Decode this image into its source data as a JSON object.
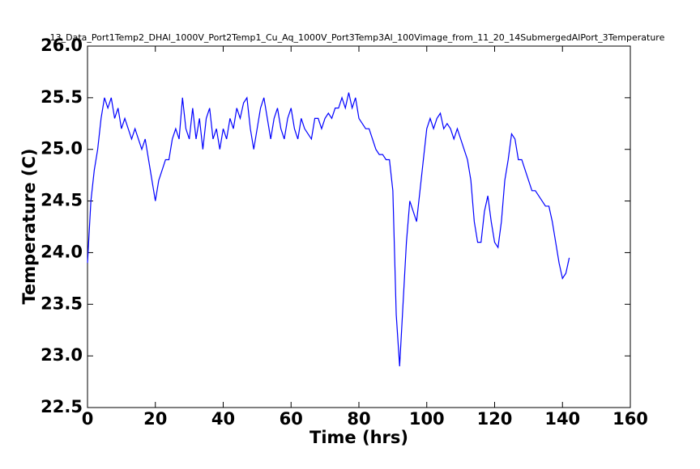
{
  "chart_data": {
    "type": "line",
    "title": "13_Data_Port1Temp2_DHAl_1000V_Port2Temp1_Cu_Aq_1000V_Port3Temp3Al_100Vimage_from_11_20_14SubmergedAlPort_3Temperature",
    "xlabel": "Time (hrs)",
    "ylabel": "Temperature (C)",
    "x": [
      0,
      1,
      2,
      3,
      4,
      5,
      6,
      7,
      8,
      9,
      10,
      11,
      12,
      13,
      14,
      15,
      16,
      17,
      18,
      19,
      20,
      21,
      22,
      23,
      24,
      25,
      26,
      27,
      28,
      29,
      30,
      31,
      32,
      33,
      34,
      35,
      36,
      37,
      38,
      39,
      40,
      41,
      42,
      43,
      44,
      45,
      46,
      47,
      48,
      49,
      50,
      51,
      52,
      53,
      54,
      55,
      56,
      57,
      58,
      59,
      60,
      61,
      62,
      63,
      64,
      65,
      66,
      67,
      68,
      69,
      70,
      71,
      72,
      73,
      74,
      75,
      76,
      77,
      78,
      79,
      80,
      81,
      82,
      83,
      84,
      85,
      86,
      87,
      88,
      89,
      90,
      91,
      92,
      93,
      94,
      95,
      96,
      97,
      98,
      99,
      100,
      101,
      102,
      103,
      104,
      105,
      106,
      107,
      108,
      109,
      110,
      111,
      112,
      113,
      114,
      115,
      116,
      117,
      118,
      119,
      120,
      121,
      122,
      123,
      124,
      125,
      126,
      127,
      128,
      129,
      130,
      131,
      132,
      133,
      134,
      135,
      136,
      137,
      138,
      139,
      140,
      141,
      142
    ],
    "series": [
      {
        "name": "Temperature",
        "color": "#0000ff",
        "values": [
          23.9,
          24.5,
          24.8,
          25.0,
          25.3,
          25.5,
          25.4,
          25.5,
          25.3,
          25.4,
          25.2,
          25.3,
          25.2,
          25.1,
          25.2,
          25.1,
          25.0,
          25.1,
          24.9,
          24.7,
          24.5,
          24.7,
          24.8,
          24.9,
          24.9,
          25.1,
          25.2,
          25.1,
          25.5,
          25.2,
          25.1,
          25.4,
          25.1,
          25.3,
          25.0,
          25.3,
          25.4,
          25.1,
          25.2,
          25.0,
          25.2,
          25.1,
          25.3,
          25.2,
          25.4,
          25.3,
          25.45,
          25.5,
          25.2,
          25.0,
          25.2,
          25.4,
          25.5,
          25.3,
          25.1,
          25.3,
          25.4,
          25.2,
          25.1,
          25.3,
          25.4,
          25.2,
          25.1,
          25.3,
          25.2,
          25.15,
          25.1,
          25.3,
          25.3,
          25.2,
          25.3,
          25.35,
          25.3,
          25.4,
          25.4,
          25.5,
          25.4,
          25.55,
          25.4,
          25.5,
          25.3,
          25.25,
          25.2,
          25.2,
          25.1,
          25.0,
          24.95,
          24.95,
          24.9,
          24.9,
          24.6,
          23.4,
          22.9,
          23.5,
          24.1,
          24.5,
          24.4,
          24.3,
          24.6,
          24.9,
          25.2,
          25.3,
          25.2,
          25.3,
          25.35,
          25.2,
          25.25,
          25.2,
          25.1,
          25.2,
          25.1,
          25.0,
          24.9,
          24.7,
          24.3,
          24.1,
          24.1,
          24.4,
          24.55,
          24.3,
          24.1,
          24.05,
          24.3,
          24.7,
          24.9,
          25.15,
          25.1,
          24.9,
          24.9,
          24.8,
          24.7,
          24.6,
          24.6,
          24.55,
          24.5,
          24.45,
          24.45,
          24.3,
          24.1,
          23.9,
          23.75,
          23.8,
          23.95
        ]
      }
    ],
    "xlim": [
      0,
      160
    ],
    "xticks": [
      0,
      20,
      40,
      60,
      80,
      100,
      120,
      140,
      160
    ],
    "ylim": [
      22.5,
      26
    ],
    "yticks": [
      22.5,
      {
        "value": 23,
        "label": "23.0"
      },
      23.5,
      {
        "value": 24,
        "label": "24.0"
      },
      24.5,
      {
        "value": 25,
        "label": "25.0"
      },
      25.5,
      {
        "value": 26,
        "label": "26.0"
      }
    ],
    "grid": false
  }
}
